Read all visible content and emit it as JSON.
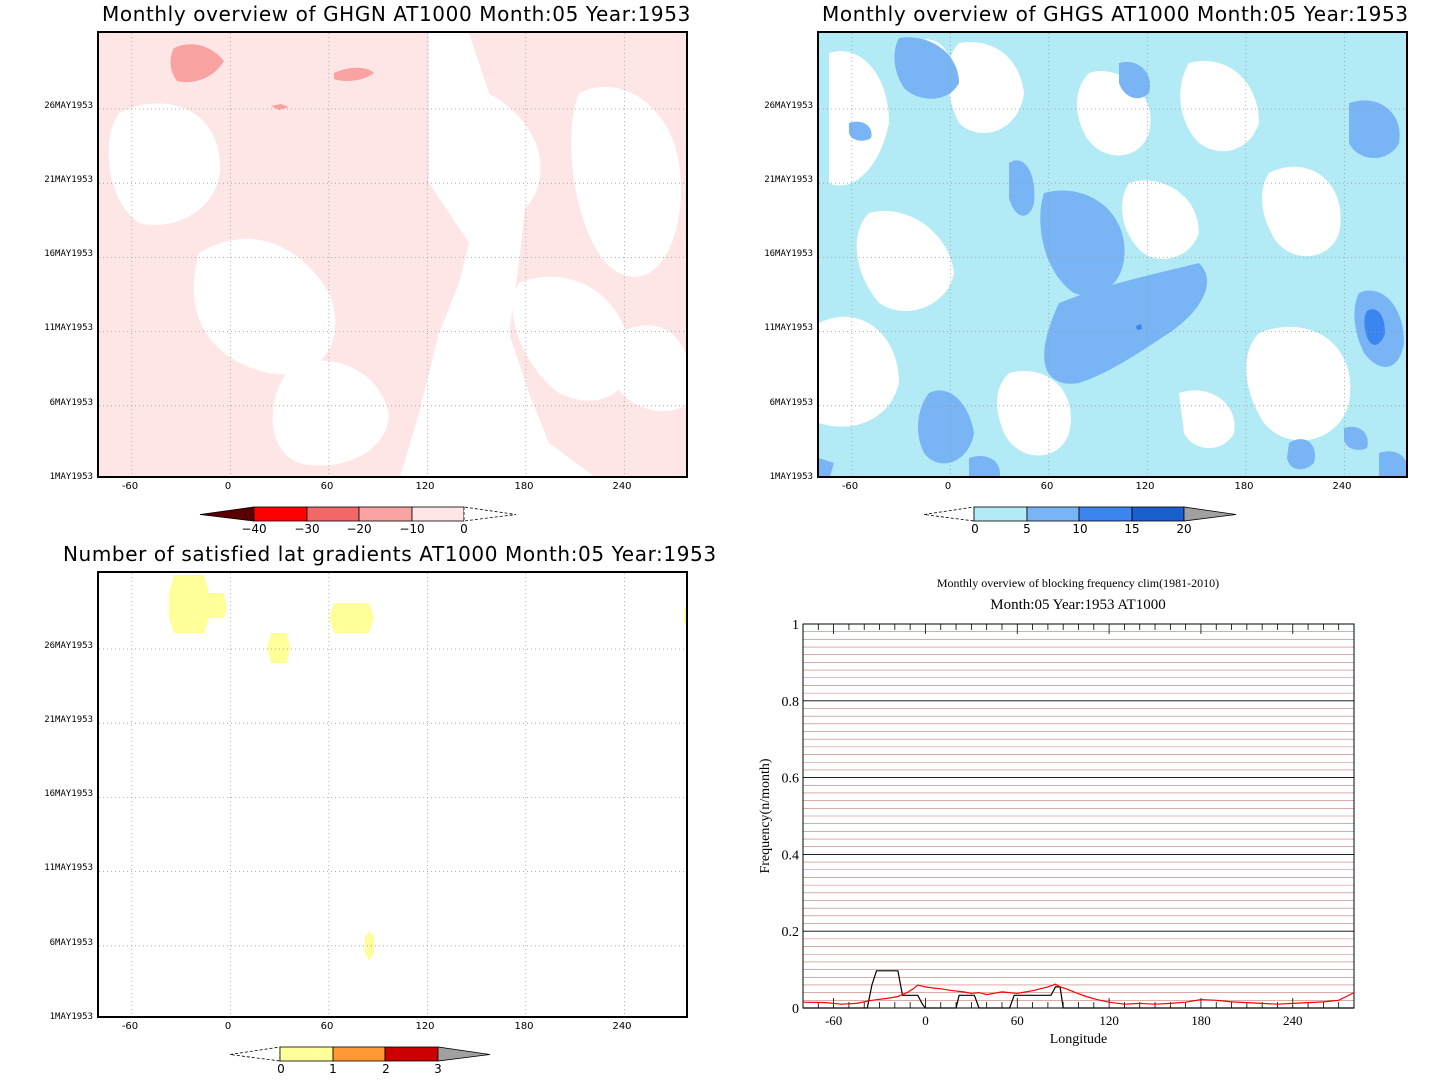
{
  "panels": {
    "ghgn": {
      "title": "Monthly overview of GHGN AT1000 Month:05 Year:1953",
      "colorbar_labels": [
        "−40",
        "−30",
        "−20",
        "−10",
        "0"
      ],
      "colors": {
        "lt": "#ffe6e6",
        "mid": "#f9a2a2",
        "dark": "#f26868"
      }
    },
    "ghgs": {
      "title": "Monthly overview of GHGS AT1000 Month:05 Year:1953",
      "colorbar_labels": [
        "0",
        "5",
        "10",
        "15",
        "20"
      ],
      "colors": {
        "lt": "#b2ebf6",
        "mid": "#79b5f5",
        "dark": "#3a85f0"
      }
    },
    "lat": {
      "title": "Number of satisfied lat gradients AT1000 Month:05 Year:1953",
      "colorbar_labels": [
        "0",
        "1",
        "2",
        "3"
      ],
      "colors": {
        "fill": "#ffff99"
      }
    },
    "line": {
      "title1": "Monthly overview of blocking frequency clim(1981-2010)",
      "title2": "Month:05 Year:1953  AT1000",
      "ylabel": "Frequency(n/month)",
      "xlabel": "Longitude"
    }
  },
  "map_axes": {
    "y_ticks": [
      "1MAY1953",
      "6MAY1953",
      "11MAY1953",
      "16MAY1953",
      "21MAY1953",
      "26MAY1953"
    ],
    "x_ticks": [
      "-60",
      "0",
      "60",
      "120",
      "180",
      "240"
    ]
  },
  "chart_data": [
    {
      "type": "heatmap",
      "title": "Monthly overview of GHGN AT1000 Month:05 Year:1953",
      "x_range": [
        -80,
        280
      ],
      "y_ticks": [
        "1MAY1953",
        "6MAY1953",
        "11MAY1953",
        "16MAY1953",
        "21MAY1953",
        "26MAY1953"
      ],
      "x_ticks": [
        -60,
        0,
        60,
        120,
        180,
        240
      ],
      "colorbar": {
        "levels": [
          -40,
          -30,
          -20,
          -10,
          0
        ],
        "colors": [
          "#5a0000",
          "#ff0000",
          "#f26868",
          "#f9a2a2",
          "#ffe6e6"
        ]
      }
    },
    {
      "type": "heatmap",
      "title": "Monthly overview of GHGS AT1000 Month:05 Year:1953",
      "x_range": [
        -80,
        280
      ],
      "y_ticks": [
        "1MAY1953",
        "6MAY1953",
        "11MAY1953",
        "16MAY1953",
        "21MAY1953",
        "26MAY1953"
      ],
      "x_ticks": [
        -60,
        0,
        60,
        120,
        180,
        240
      ],
      "colorbar": {
        "levels": [
          0,
          5,
          10,
          15,
          20
        ],
        "colors": [
          "#b2ebf6",
          "#79b5f5",
          "#3a85f0",
          "#1a5fd0",
          "#a0a0a0"
        ]
      }
    },
    {
      "type": "heatmap",
      "title": "Number of satisfied lat gradients AT1000 Month:05 Year:1953",
      "x_range": [
        -80,
        280
      ],
      "y_ticks": [
        "1MAY1953",
        "6MAY1953",
        "11MAY1953",
        "16MAY1953",
        "21MAY1953",
        "26MAY1953"
      ],
      "x_ticks": [
        -60,
        0,
        60,
        120,
        180,
        240
      ],
      "colorbar": {
        "levels": [
          0,
          1,
          2,
          3
        ],
        "colors": [
          "#ffff99",
          "#ff9933",
          "#cc0000",
          "#a0a0a0"
        ]
      }
    },
    {
      "type": "line",
      "title": "Monthly overview of blocking frequency clim(1981-2010)",
      "subtitle": "Month:05 Year:1953  AT1000",
      "xlabel": "Longitude",
      "ylabel": "Frequency(n/month)",
      "xlim": [
        -80,
        280
      ],
      "ylim": [
        0,
        1
      ],
      "x_ticks": [
        -60,
        0,
        60,
        120,
        180,
        240
      ],
      "y_ticks": [
        0,
        0.2,
        0.4,
        0.6,
        0.8,
        1
      ],
      "y_tick_labels": [
        "0",
        "0.2",
        "0.4",
        "0.6",
        "0.8",
        "1"
      ],
      "series": [
        {
          "color": "#000000",
          "x": [
            -80,
            -38,
            -35,
            -32,
            -18,
            -15,
            -5,
            -2,
            0,
            20,
            22,
            32,
            35,
            55,
            58,
            82,
            85,
            88,
            90,
            280
          ],
          "y": [
            0,
            0,
            0.06,
            0.097,
            0.097,
            0.033,
            0.033,
            0.01,
            0,
            0,
            0.033,
            0.033,
            0,
            0,
            0.033,
            0.033,
            0.055,
            0.055,
            0,
            0
          ]
        },
        {
          "color": "#ff0000",
          "x": [
            -80,
            -65,
            -55,
            -45,
            -35,
            -25,
            -18,
            -12,
            -8,
            -5,
            0,
            5,
            10,
            18,
            25,
            30,
            35,
            40,
            50,
            60,
            70,
            80,
            85,
            88,
            92,
            98,
            105,
            112,
            120,
            130,
            140,
            150,
            160,
            170,
            180,
            190,
            200,
            210,
            220,
            230,
            240,
            250,
            260,
            270,
            275,
            280
          ],
          "y": [
            0.015,
            0.014,
            0.01,
            0.012,
            0.02,
            0.025,
            0.03,
            0.04,
            0.05,
            0.06,
            0.055,
            0.052,
            0.05,
            0.045,
            0.042,
            0.038,
            0.04,
            0.035,
            0.042,
            0.038,
            0.045,
            0.055,
            0.062,
            0.055,
            0.05,
            0.04,
            0.03,
            0.022,
            0.015,
            0.01,
            0.012,
            0.01,
            0.012,
            0.015,
            0.022,
            0.02,
            0.016,
            0.014,
            0.012,
            0.01,
            0.012,
            0.014,
            0.016,
            0.02,
            0.03,
            0.04
          ]
        }
      ]
    }
  ]
}
